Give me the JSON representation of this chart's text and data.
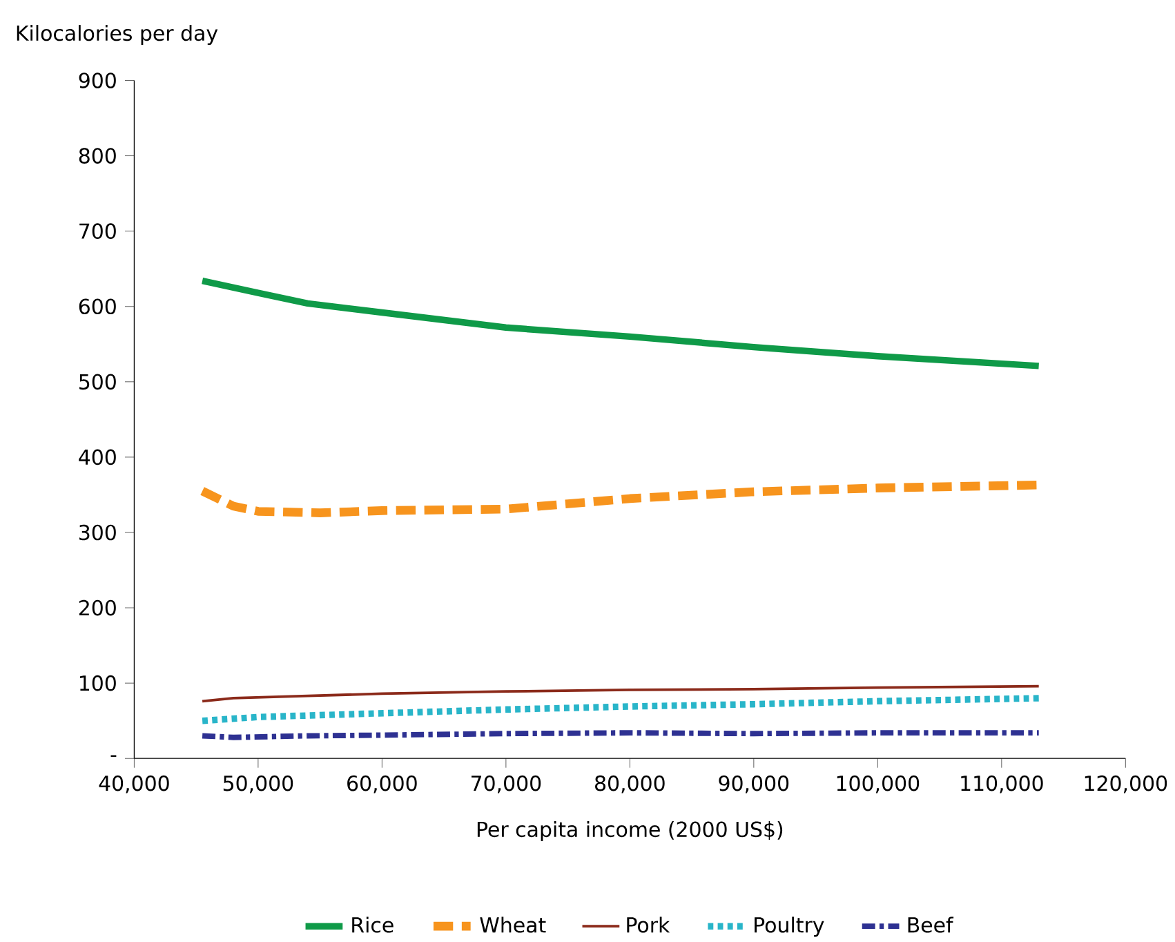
{
  "chart_data": {
    "type": "line",
    "xlabel": "Per capita income (2000 US$)",
    "ylabel": "Kilocalories per day",
    "xlim": [
      40000,
      120000
    ],
    "xticks": [
      {
        "value": 40000,
        "label": "40,000"
      },
      {
        "value": 50000,
        "label": "50,000"
      },
      {
        "value": 60000,
        "label": "60,000"
      },
      {
        "value": 70000,
        "label": "70,000"
      },
      {
        "value": 80000,
        "label": "80,000"
      },
      {
        "value": 90000,
        "label": "90,000"
      },
      {
        "value": 100000,
        "label": "100,000"
      },
      {
        "value": 110000,
        "label": "110,000"
      },
      {
        "value": 120000,
        "label": "120,000"
      }
    ],
    "ylim": [
      0,
      900
    ],
    "yticks": [
      {
        "value": 0,
        "label": "-"
      },
      100,
      200,
      300,
      400,
      500,
      600,
      700,
      800,
      900
    ],
    "grid": false,
    "legend": "bottom",
    "marker": "none",
    "series": [
      {
        "name": "Rice",
        "color": "#0f9a48",
        "line_style": "solid",
        "x": [
          45500,
          50000,
          54000,
          60000,
          70000,
          80000,
          90000,
          100000,
          113000
        ],
        "values": [
          634,
          618,
          604,
          592,
          572,
          560,
          546,
          534,
          521
        ]
      },
      {
        "name": "Wheat",
        "color": "#f7941d",
        "line_style": "dashed",
        "x": [
          45500,
          48000,
          50000,
          55000,
          60000,
          70000,
          75000,
          80000,
          90000,
          100000,
          113000
        ],
        "values": [
          355,
          335,
          328,
          326,
          329,
          331,
          338,
          345,
          354,
          359,
          363
        ]
      },
      {
        "name": "Pork",
        "color": "#8b2a1a",
        "line_style": "solid",
        "x": [
          45500,
          48000,
          54000,
          60000,
          70000,
          80000,
          90000,
          100000,
          113000
        ],
        "values": [
          76,
          80,
          83,
          86,
          89,
          91,
          92,
          94,
          96
        ]
      },
      {
        "name": "Poultry",
        "color": "#29b5c9",
        "line_style": "dotted",
        "x": [
          45500,
          50000,
          60000,
          70000,
          80000,
          90000,
          100000,
          113000
        ],
        "values": [
          50,
          55,
          60,
          65,
          69,
          72,
          76,
          80
        ]
      },
      {
        "name": "Beef",
        "color": "#2e3192",
        "line_style": "dashdot",
        "x": [
          45500,
          48000,
          54000,
          60000,
          70000,
          80000,
          90000,
          100000,
          113000
        ],
        "values": [
          30,
          28,
          30,
          31,
          33,
          34,
          33,
          34,
          34
        ]
      }
    ]
  }
}
